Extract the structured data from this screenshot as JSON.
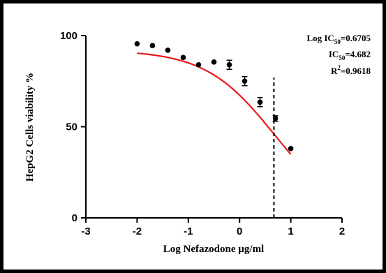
{
  "chart_data": {
    "type": "scatter",
    "xlabel": "Log Nefazodone µg/ml",
    "ylabel": "HepG2 Cells viability %",
    "xlim": [
      -3,
      2
    ],
    "ylim": [
      0,
      100
    ],
    "x_ticks": [
      "-3",
      "-2",
      "-1",
      "0",
      "1",
      "2"
    ],
    "y_ticks": [
      "0",
      "50",
      "100"
    ],
    "points": [
      {
        "x": -2.0,
        "y": 95.5,
        "err": 0
      },
      {
        "x": -1.7,
        "y": 94.5,
        "err": 0
      },
      {
        "x": -1.4,
        "y": 92.0,
        "err": 0
      },
      {
        "x": -1.1,
        "y": 88.0,
        "err": 0
      },
      {
        "x": -0.8,
        "y": 84.0,
        "err": 0
      },
      {
        "x": -0.5,
        "y": 85.5,
        "err": 0
      },
      {
        "x": -0.2,
        "y": 84.0,
        "err": 2.5
      },
      {
        "x": 0.1,
        "y": 75.0,
        "err": 2.5
      },
      {
        "x": 0.4,
        "y": 63.5,
        "err": 2.5
      },
      {
        "x": 0.7,
        "y": 54.5,
        "err": 1.5
      },
      {
        "x": 1.0,
        "y": 38.0,
        "err": 0
      }
    ],
    "fit_curve": {
      "model": "sigmoidal dose-response",
      "top": 92,
      "bottom": 0,
      "log_ic50": 0.6705,
      "hill_slope": 0.65,
      "x_range": [
        -2,
        1
      ],
      "color": "#e8191d"
    },
    "reference_line_x": 0.6705,
    "annotations": {
      "log_ic50_prefix": "Log IC",
      "log_ic50_sub": "50",
      "log_ic50_value": "=0.6705",
      "ic50_prefix": "IC",
      "ic50_sub": "50",
      "ic50_value": "=4.682",
      "r2_prefix": "R",
      "r2_sup": "2",
      "r2_value": "=0.9618"
    }
  }
}
